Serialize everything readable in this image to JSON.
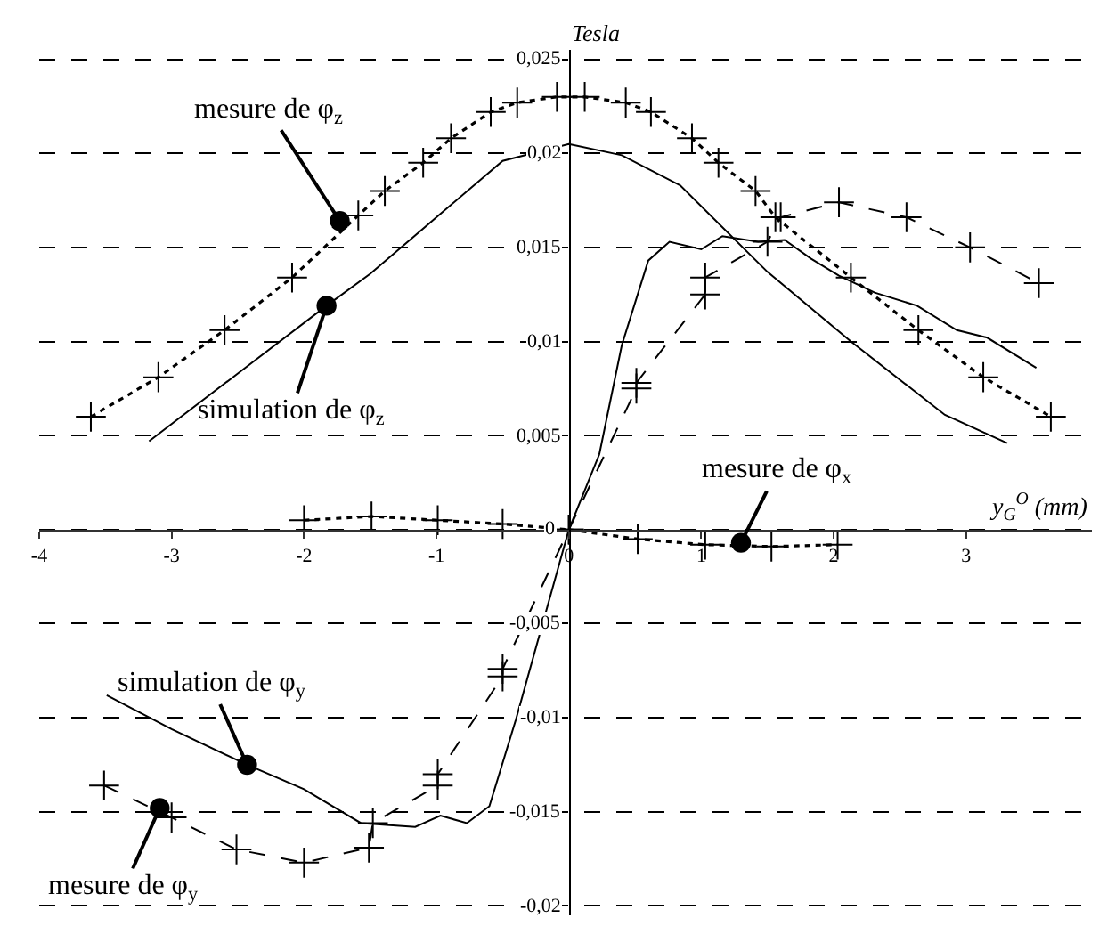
{
  "chart_data": {
    "type": "line",
    "xlabel": "y$_{G}$$^{O}$ (mm)",
    "ylabel": "Tesla",
    "xlim": [
      -4.0,
      3.95
    ],
    "ylim": [
      -0.0205,
      0.0255
    ],
    "xticks": [
      -4,
      -3,
      -2,
      -1,
      0,
      1,
      2,
      3
    ],
    "yticks": [
      {
        "value": 0.025,
        "label": "0,025"
      },
      {
        "value": 0.02,
        "label": "0,02"
      },
      {
        "value": 0.015,
        "label": "0,015"
      },
      {
        "value": 0.01,
        "label": "0,01"
      },
      {
        "value": 0.005,
        "label": "0,005"
      },
      {
        "value": 0,
        "label": "0"
      },
      {
        "value": -0.005,
        "label": "-0,005"
      },
      {
        "value": -0.01,
        "label": "-0,01"
      },
      {
        "value": -0.015,
        "label": "-0,015"
      },
      {
        "value": -0.02,
        "label": "-0,02"
      }
    ],
    "grid": "y",
    "series": [
      {
        "color": "#000000",
        "marker": "cross",
        "line_style": "dotted",
        "x": [
          -3.61,
          -3.1,
          -2.6,
          -2.09,
          -1.59,
          -1.39,
          -1.1,
          -0.89,
          -0.59,
          -0.39,
          -0.09,
          0.12,
          0.43,
          0.62,
          0.93,
          1.13,
          1.41,
          1.56,
          2.13,
          2.64,
          3.13,
          3.64
        ],
        "values": [
          0.006,
          0.0081,
          0.0106,
          0.0134,
          0.0167,
          0.018,
          0.0195,
          0.0208,
          0.0222,
          0.0227,
          0.023,
          0.023,
          0.0227,
          0.0222,
          0.0208,
          0.0195,
          0.018,
          0.0166,
          0.0134,
          0.0106,
          0.0081,
          0.006
        ]
      },
      {
        "color": "#000000",
        "marker": "none",
        "line_style": "solid",
        "x": [
          -3.17,
          -2.5,
          -1.83,
          -1.5,
          -1.0,
          -0.5,
          0,
          0.4,
          0.84,
          1.5,
          2.13,
          2.84,
          3.31
        ],
        "values": [
          0.0047,
          0.0083,
          0.0119,
          0.0136,
          0.0166,
          0.0196,
          0.0205,
          0.0199,
          0.0183,
          0.0137,
          0.01,
          0.0061,
          0.0046
        ]
      },
      {
        "color": "#000000",
        "marker": "cross",
        "line_style": "dashed",
        "x": [
          -3.51,
          -3.0,
          -2.51,
          -2.0,
          -1.51,
          -1.48,
          -0.99,
          -0.99,
          -0.5,
          -0.5,
          0,
          0.51,
          0.51,
          1.03,
          1.03,
          1.5,
          1.6,
          2.04,
          2.55,
          3.03,
          3.55
        ],
        "values": [
          -0.0136,
          -0.0153,
          -0.017,
          -0.0177,
          -0.0169,
          -0.0156,
          -0.0136,
          -0.013,
          -0.0078,
          -0.0074,
          0,
          0.0075,
          0.0078,
          0.0125,
          0.0134,
          0.0153,
          0.0166,
          0.0174,
          0.0166,
          0.015,
          0.0131
        ]
      },
      {
        "color": "#000000",
        "marker": "none",
        "line_style": "solid",
        "x": [
          -3.49,
          -3.0,
          -2.43,
          -2.0,
          -1.57,
          -1.16,
          -0.97,
          -0.77,
          -0.6,
          -0.4,
          0,
          0.23,
          0.4,
          0.6,
          0.76,
          1.0,
          1.16,
          1.43,
          1.63,
          1.83,
          2.04,
          2.31,
          2.63,
          2.93,
          3.16,
          3.53
        ],
        "values": [
          -0.0088,
          -0.0106,
          -0.0125,
          -0.0138,
          -0.0156,
          -0.0158,
          -0.0152,
          -0.0156,
          -0.0147,
          -0.0101,
          0,
          0.004,
          0.0098,
          0.0143,
          0.0153,
          0.0149,
          0.0156,
          0.0153,
          0.0154,
          0.0144,
          0.0135,
          0.0126,
          0.0119,
          0.0106,
          0.0102,
          0.0086
        ]
      },
      {
        "color": "#000000",
        "marker": "cross",
        "line_style": "dotted",
        "x": [
          -2.0,
          -1.49,
          -0.99,
          -0.5,
          0,
          0.52,
          1.03,
          1.53,
          2.03
        ],
        "values": [
          0.0005,
          0.0007,
          0.0005,
          0.0003,
          0,
          -0.0005,
          -0.0008,
          -0.0009,
          -0.0008
        ]
      }
    ],
    "annotations": [
      {
        "text": "mesure de φ$_{z}$",
        "x": -1.73,
        "y": 0.0164
      },
      {
        "text": "simulation de φ$_{z}$",
        "x": -1.83,
        "y": 0.0119
      },
      {
        "text": "mesure de φ$_{x}$",
        "x": 1.3,
        "y": -0.0007
      },
      {
        "text": "simulation de φ$_{y}$",
        "x": -2.43,
        "y": -0.0125
      },
      {
        "text": "mesure de φ$_{y}$",
        "x": -3.09,
        "y": -0.0148
      }
    ]
  }
}
